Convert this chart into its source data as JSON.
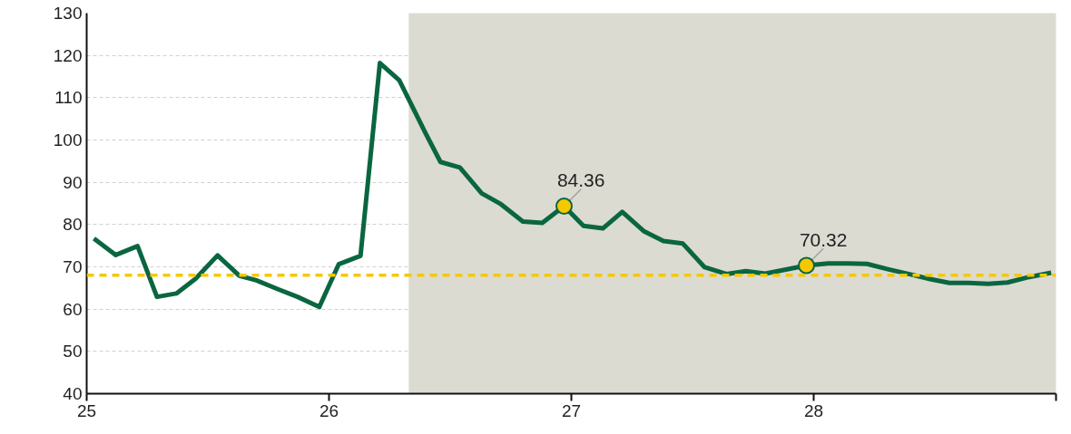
{
  "chart_data": {
    "type": "line",
    "x": [
      25.03,
      25.12,
      25.21,
      25.29,
      25.37,
      25.45,
      25.54,
      25.63,
      25.7,
      25.79,
      25.87,
      25.96,
      26.04,
      26.13,
      26.21,
      26.29,
      26.4,
      26.46,
      26.54,
      26.63,
      26.71,
      26.8,
      26.88,
      26.97,
      27.05,
      27.13,
      27.21,
      27.3,
      27.38,
      27.46,
      27.55,
      27.64,
      27.72,
      27.8,
      27.89,
      27.97,
      28.06,
      28.14,
      28.22,
      28.31,
      28.4,
      28.48,
      28.56,
      28.64,
      28.72,
      28.8,
      28.89,
      28.98
    ],
    "series": [
      {
        "color": "#0a6640",
        "values": [
          76.7,
          72.8,
          74.9,
          62.9,
          63.7,
          67.2,
          72.7,
          67.9,
          66.8,
          64.7,
          62.9,
          60.5,
          70.6,
          72.6,
          118.2,
          114.1,
          101.4,
          94.8,
          93.5,
          87.4,
          84.8,
          80.7,
          80.4,
          84.36,
          79.7,
          79.1,
          83.0,
          78.4,
          76.1,
          75.5,
          69.9,
          68.3,
          69.0,
          68.4,
          69.4,
          70.32,
          70.8,
          70.8,
          70.7,
          69.4,
          68.2,
          67.1,
          66.2,
          66.2,
          66.0,
          66.3,
          67.6,
          68.6
        ]
      }
    ],
    "xlim": [
      25,
      29
    ],
    "xticks": [
      25,
      26,
      27,
      28,
      {
        "value": 29,
        "label": null
      }
    ],
    "ylim": [
      40,
      130
    ],
    "yticks": [
      40,
      50,
      60,
      70,
      80,
      90,
      100,
      110,
      120,
      130
    ],
    "grid": "y",
    "marker": "none",
    "line_style": "solid",
    "ref_lines": [
      {
        "axis": "y",
        "value": 68,
        "color": "#f5c800",
        "line_style": "dashed"
      }
    ],
    "bands": [
      {
        "axis": "x",
        "from": 26.33,
        "to": 29,
        "color": "#dcdbd1"
      }
    ],
    "annotations": [
      {
        "text": "84.36",
        "x": 26.97,
        "y": 84.36
      },
      {
        "text": "70.32",
        "x": 27.97,
        "y": 70.32
      }
    ]
  }
}
